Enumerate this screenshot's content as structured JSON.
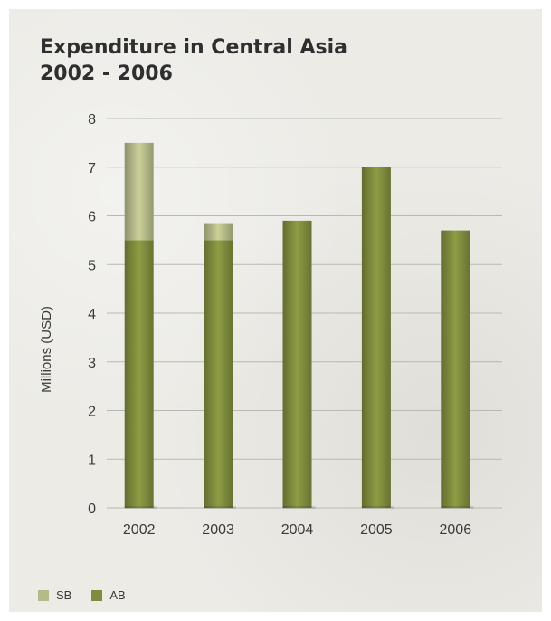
{
  "chart_data": {
    "type": "bar",
    "stacked": true,
    "title_line1": "Expenditure in Central Asia",
    "title_line2": "2002 - 2006",
    "xlabel": "",
    "ylabel": "Millions (USD)",
    "ylim": [
      0,
      8
    ],
    "yticks": [
      0,
      1,
      2,
      3,
      4,
      5,
      6,
      7,
      8
    ],
    "categories": [
      "2002",
      "2003",
      "2004",
      "2005",
      "2006"
    ],
    "series": [
      {
        "name": "AB",
        "values": [
          5.5,
          5.5,
          5.9,
          7.0,
          5.7
        ],
        "color": "#7f8c3d"
      },
      {
        "name": "SB",
        "values": [
          2.0,
          0.35,
          0.0,
          0.0,
          0.0
        ],
        "color": "#b6ba89"
      }
    ],
    "grid": true,
    "legend_position": "bottom-left"
  },
  "legend": {
    "items": [
      {
        "label": "SB",
        "color": "#b6ba89"
      },
      {
        "label": "AB",
        "color": "#7f8c3d"
      }
    ]
  }
}
